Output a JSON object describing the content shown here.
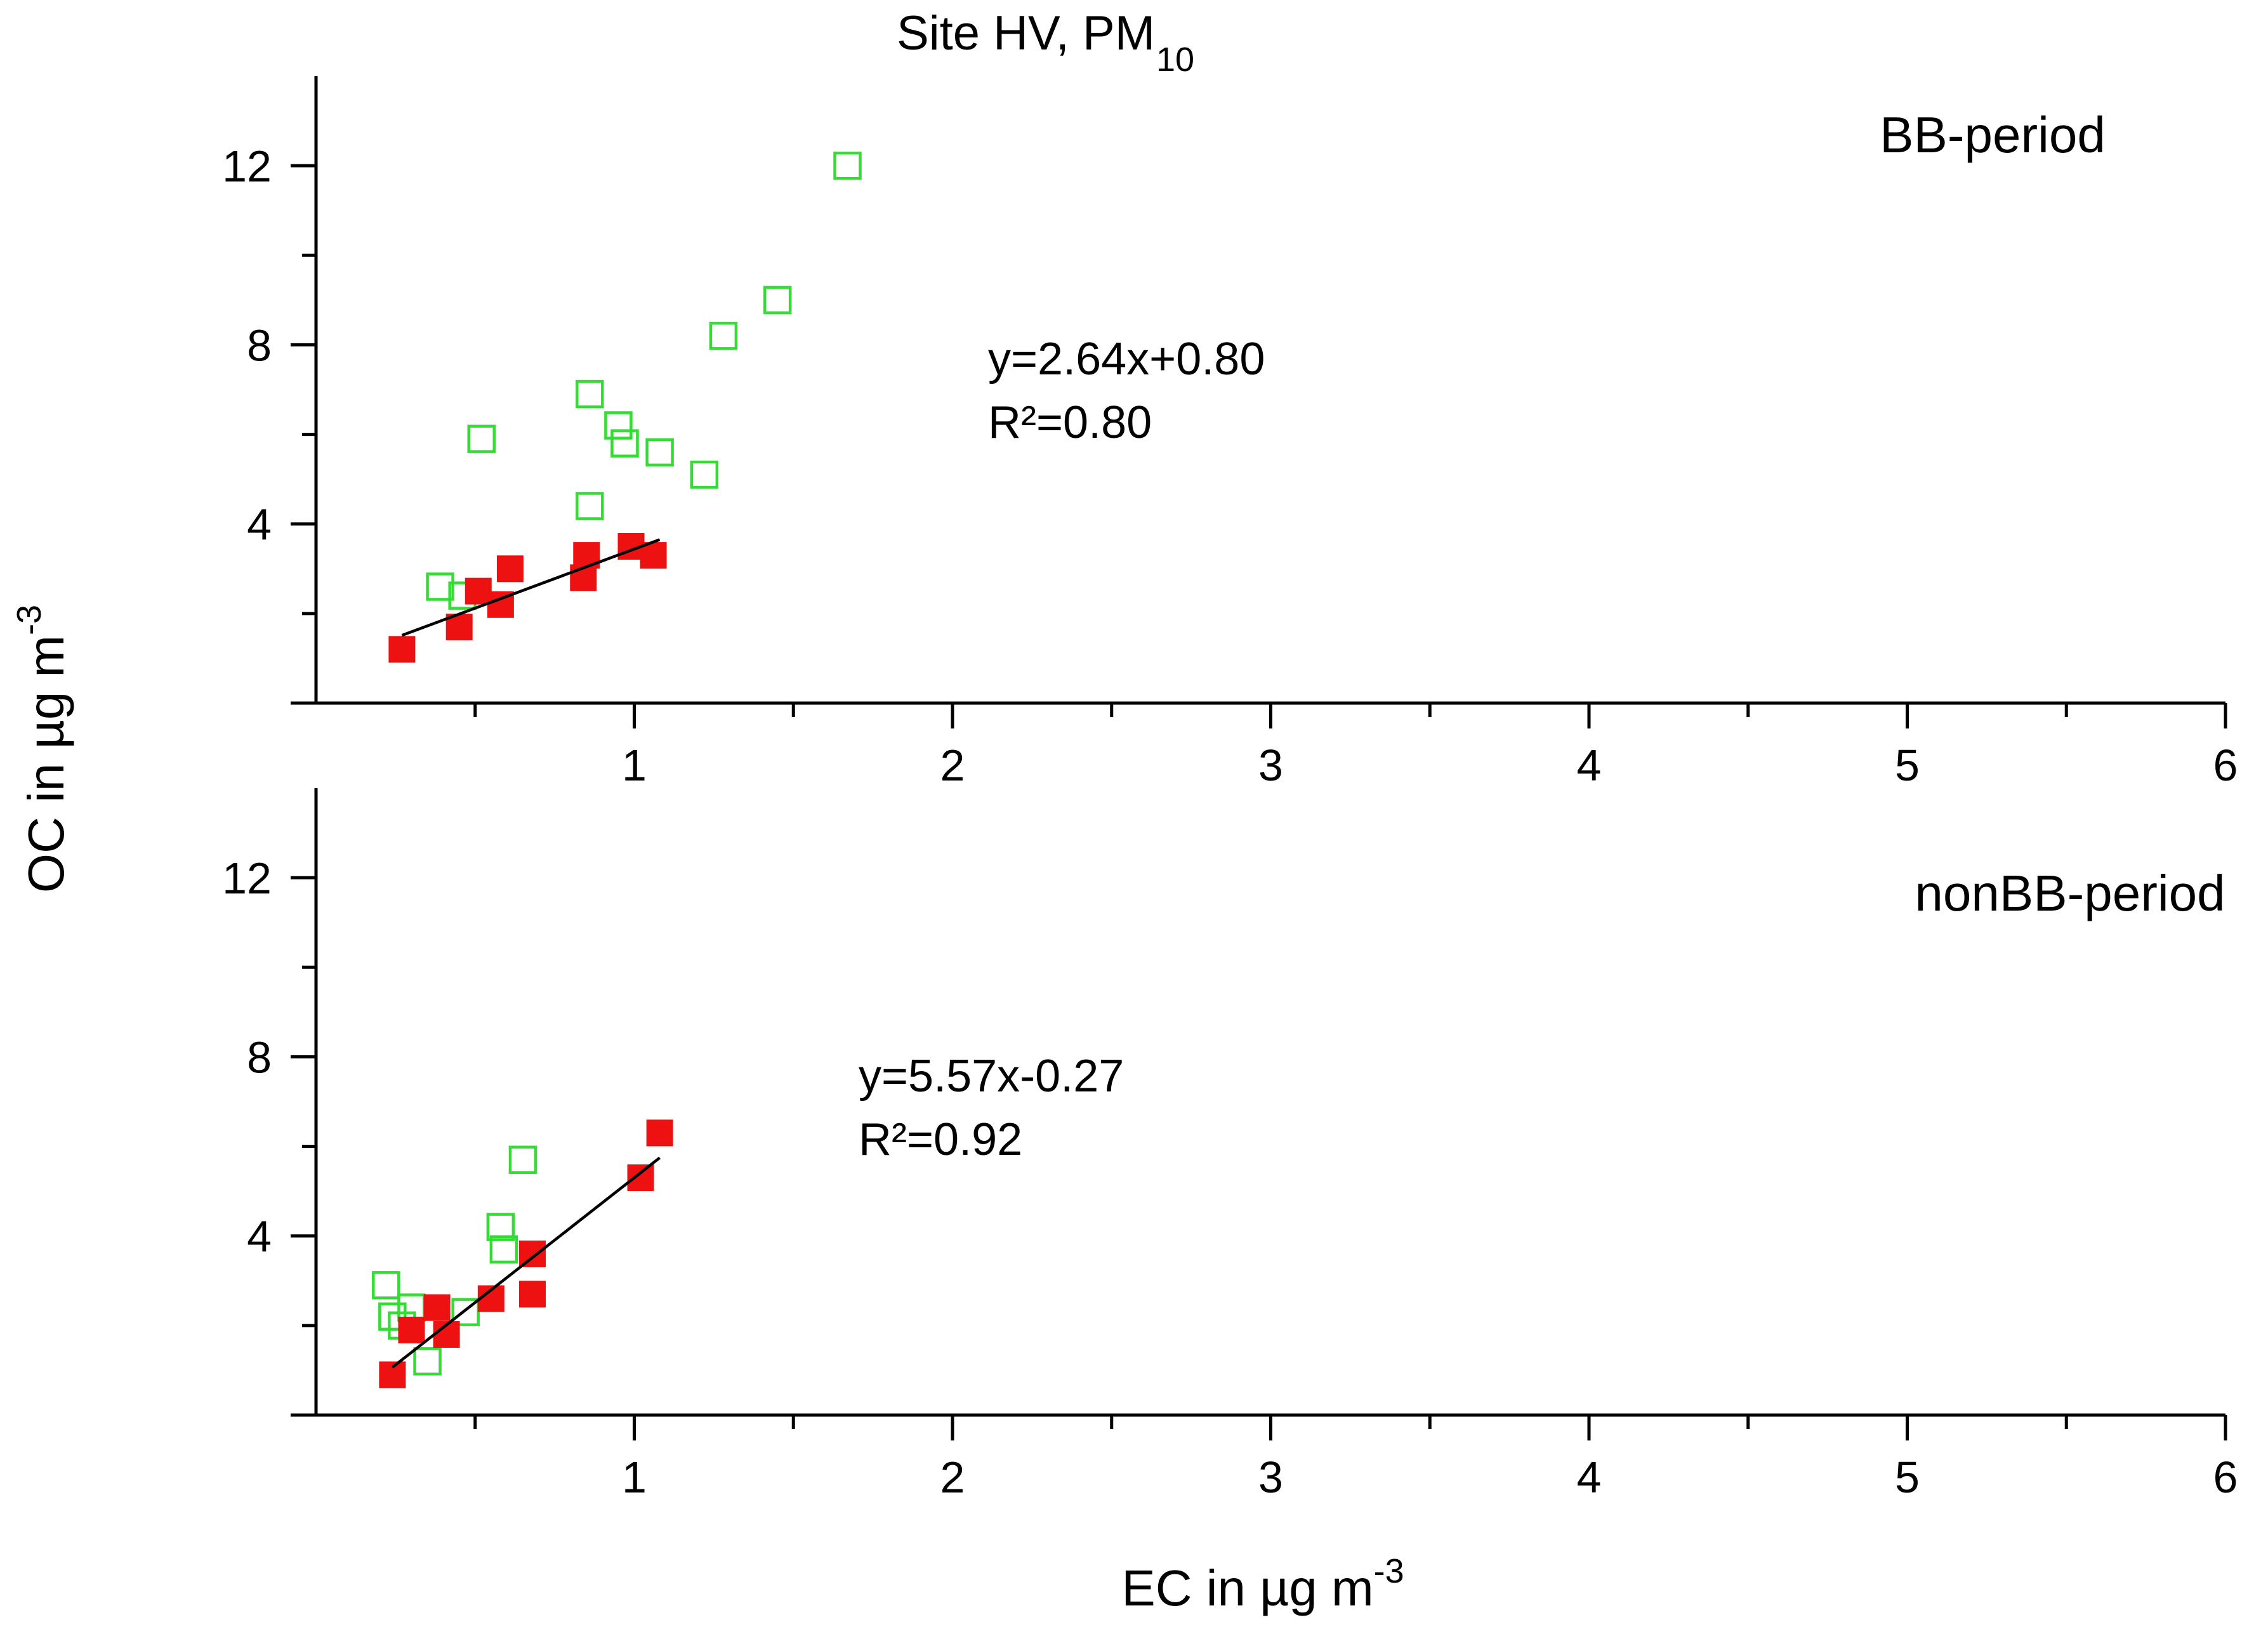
{
  "figure": {
    "title_main": "Site HV, PM",
    "title_sub": "10",
    "ylabel_main": "OC in µg m",
    "ylabel_sup": "-3",
    "xlabel_main": "EC in µg m",
    "xlabel_sup": "-3"
  },
  "colors": {
    "filled_marker": "#ee1111",
    "open_marker": "#33dd33",
    "fit_line": "#000000",
    "axis": "#000000"
  },
  "chart_data": [
    {
      "type": "scatter",
      "panel": "top",
      "title": "BB-period",
      "xlabel": "EC in µg m-3",
      "ylabel": "OC in µg m-3",
      "xlim": [
        0,
        6
      ],
      "ylim": [
        0,
        14
      ],
      "xticks": [
        1,
        2,
        3,
        4,
        5,
        6
      ],
      "yticks": [
        4,
        8,
        12
      ],
      "grid": false,
      "series": [
        {
          "marker": "filled-square",
          "color": "#ee1111",
          "points": [
            [
              0.27,
              1.2
            ],
            [
              0.45,
              1.7
            ],
            [
              0.51,
              2.5
            ],
            [
              0.58,
              2.2
            ],
            [
              0.61,
              3.0
            ],
            [
              0.84,
              2.8
            ],
            [
              0.85,
              3.3
            ],
            [
              0.99,
              3.5
            ],
            [
              1.06,
              3.3
            ]
          ]
        },
        {
          "marker": "open-square",
          "color": "#33dd33",
          "points": [
            [
              0.39,
              2.6
            ],
            [
              0.46,
              2.4
            ],
            [
              0.52,
              5.9
            ],
            [
              0.86,
              4.4
            ],
            [
              0.86,
              6.9
            ],
            [
              0.95,
              6.2
            ],
            [
              0.97,
              5.8
            ],
            [
              1.08,
              5.6
            ],
            [
              1.22,
              5.1
            ],
            [
              1.28,
              8.2
            ],
            [
              1.45,
              9.0
            ],
            [
              1.67,
              12.0
            ]
          ]
        }
      ],
      "fit": {
        "slope": 2.64,
        "intercept": 0.8,
        "x_range": [
          0.27,
          1.08
        ]
      },
      "annotations": {
        "equation": "y=2.64x+0.80",
        "r2": "R²=0.80"
      }
    },
    {
      "type": "scatter",
      "panel": "bottom",
      "title": "nonBB-period",
      "xlabel": "EC in µg m-3",
      "ylabel": "OC in µg m-3",
      "xlim": [
        0,
        6
      ],
      "ylim": [
        0,
        14
      ],
      "xticks": [
        1,
        2,
        3,
        4,
        5,
        6
      ],
      "yticks": [
        4,
        8,
        12
      ],
      "grid": false,
      "series": [
        {
          "marker": "filled-square",
          "color": "#ee1111",
          "points": [
            [
              0.24,
              0.9
            ],
            [
              0.3,
              1.9
            ],
            [
              0.38,
              2.4
            ],
            [
              0.41,
              1.8
            ],
            [
              0.55,
              2.6
            ],
            [
              0.68,
              2.7
            ],
            [
              0.68,
              3.6
            ],
            [
              1.02,
              5.3
            ],
            [
              1.08,
              6.3
            ]
          ]
        },
        {
          "marker": "open-square",
          "color": "#33dd33",
          "points": [
            [
              0.22,
              2.9
            ],
            [
              0.24,
              2.2
            ],
            [
              0.27,
              2.0
            ],
            [
              0.3,
              2.4
            ],
            [
              0.35,
              1.2
            ],
            [
              0.47,
              2.3
            ],
            [
              0.58,
              4.2
            ],
            [
              0.59,
              3.7
            ],
            [
              0.65,
              5.7
            ]
          ]
        }
      ],
      "fit": {
        "slope": 5.57,
        "intercept": -0.27,
        "x_range": [
          0.24,
          1.08
        ]
      },
      "annotations": {
        "equation": "y=5.57x-0.27",
        "r2": "R²=0.92"
      }
    }
  ]
}
